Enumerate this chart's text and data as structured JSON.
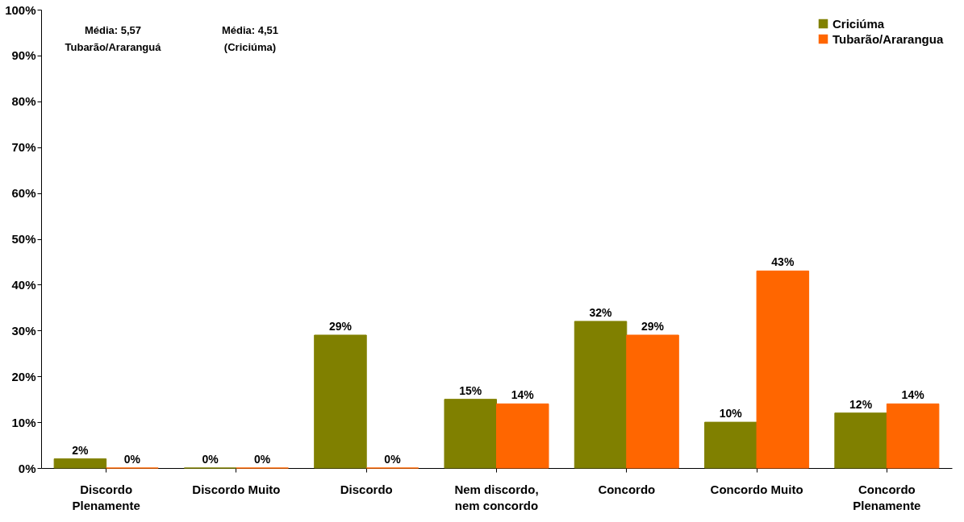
{
  "chart_data": {
    "type": "bar",
    "categories": [
      "Discordo Plenamente",
      "Discordo Muito",
      "Discordo",
      "Nem discordo, nem concordo",
      "Concordo",
      "Concordo Muito",
      "Concordo Plenamente"
    ],
    "series": [
      {
        "name": "Criciúma",
        "color": "#808000",
        "values": [
          2,
          0,
          29,
          15,
          32,
          10,
          12
        ],
        "value_labels": [
          "2%",
          "0%",
          "29%",
          "15%",
          "32%",
          "10%",
          "12%"
        ]
      },
      {
        "name": "Tubarão/Ararangua",
        "color": "#ff6600",
        "values": [
          0,
          0,
          0,
          14,
          29,
          43,
          14
        ],
        "value_labels": [
          "0%",
          "0%",
          "0%",
          "14%",
          "29%",
          "43%",
          "14%"
        ]
      }
    ],
    "ylim": [
      0,
      100
    ],
    "yticks": [
      {
        "value": 0,
        "label": "0%"
      },
      {
        "value": 10,
        "label": "10%"
      },
      {
        "value": 20,
        "label": "20%"
      },
      {
        "value": 30,
        "label": "30%"
      },
      {
        "value": 40,
        "label": "40%"
      },
      {
        "value": 50,
        "label": "50%"
      },
      {
        "value": 60,
        "label": "60%"
      },
      {
        "value": 70,
        "label": "70%"
      },
      {
        "value": 80,
        "label": "80%"
      },
      {
        "value": 90,
        "label": "90%"
      },
      {
        "value": 100,
        "label": "100%"
      }
    ],
    "annotations": [
      "Média: 5,57\nTubarão/Araranguá",
      "Média: 4,51\n(Criciúma)"
    ],
    "legend": "top right",
    "grid": false
  }
}
